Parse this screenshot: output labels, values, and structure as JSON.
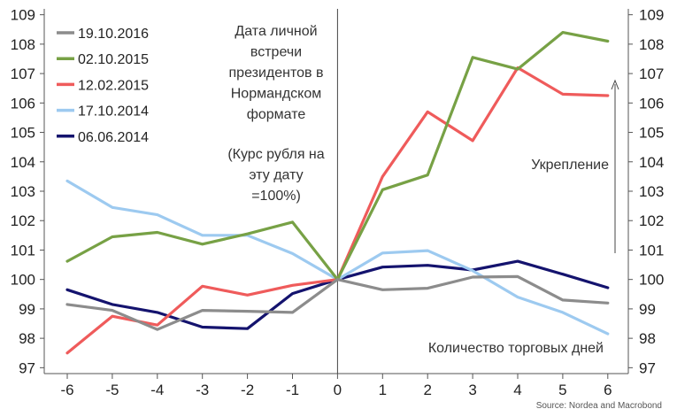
{
  "chart_data": {
    "type": "line",
    "x": [
      -6,
      -5,
      -4,
      -3,
      -2,
      -1,
      0,
      1,
      2,
      3,
      4,
      5,
      6
    ],
    "ylim": [
      96.8,
      109.2
    ],
    "yticks": [
      97,
      98,
      99,
      100,
      101,
      102,
      103,
      104,
      105,
      106,
      107,
      108,
      109
    ],
    "y_axes": "left and right",
    "series": [
      {
        "name": "19.10.2016",
        "color": "#8c8c8c",
        "values": [
          99.15,
          98.95,
          98.3,
          98.95,
          98.92,
          98.88,
          100.0,
          99.65,
          99.7,
          100.08,
          100.1,
          99.3,
          99.2
        ]
      },
      {
        "name": "02.10.2015",
        "color": "#77a145",
        "values": [
          100.62,
          101.45,
          101.6,
          101.2,
          101.55,
          101.95,
          100.0,
          103.05,
          103.55,
          107.55,
          107.15,
          108.4,
          108.1
        ]
      },
      {
        "name": "12.02.2015",
        "color": "#ef5b5b",
        "values": [
          97.5,
          98.75,
          98.45,
          99.77,
          99.47,
          99.8,
          100.0,
          103.5,
          105.7,
          104.72,
          107.2,
          106.3,
          106.25
        ]
      },
      {
        "name": "17.10.2014",
        "color": "#9dcaf0",
        "values": [
          103.35,
          102.45,
          102.2,
          101.5,
          101.5,
          100.88,
          100.0,
          100.9,
          100.98,
          100.3,
          99.4,
          98.88,
          98.15
        ]
      },
      {
        "name": "06.06.2014",
        "color": "#14136e",
        "values": [
          99.65,
          99.15,
          98.88,
          98.38,
          98.33,
          99.52,
          100.0,
          100.42,
          100.48,
          100.32,
          100.62,
          100.18,
          99.72
        ]
      }
    ],
    "annotations": {
      "meeting_lines": [
        "Дата личной",
        "встречи",
        "президентов в",
        "Нормандском",
        "формате"
      ],
      "base_lines": [
        "(Курс рубля на",
        "эту дату",
        "=100%)"
      ],
      "strengthening": "Укрепление",
      "xlabel": "Количество торговых дней"
    },
    "source": "Source: Nordea and Macrobond",
    "legend_position": "top-left"
  }
}
